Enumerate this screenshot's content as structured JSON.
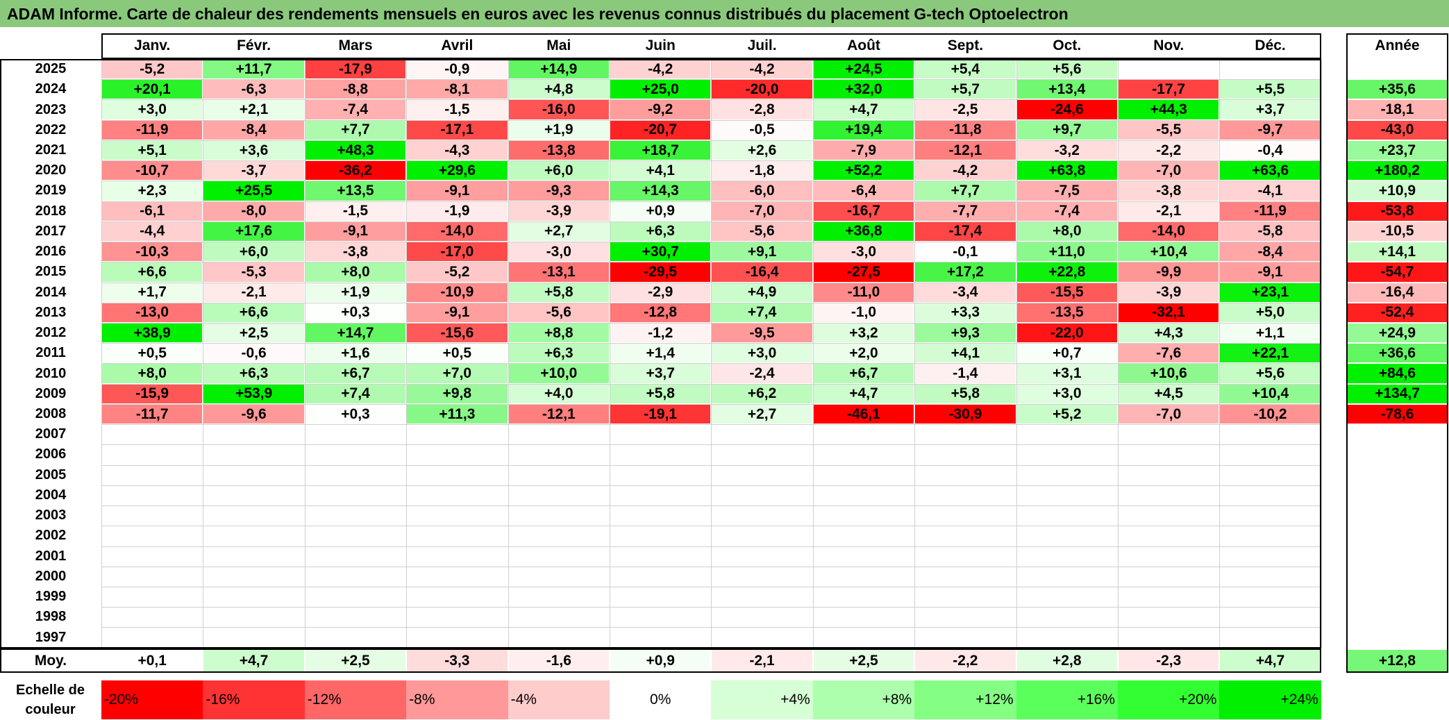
{
  "title": "ADAM Informe. Carte de chaleur des rendements mensuels en euros avec les revenus connus distribués du placement G-tech Optoelectron",
  "chart_data": {
    "type": "heatmap",
    "title": "ADAM Informe. Carte de chaleur des rendements mensuels en euros avec les revenus connus distribués du placement G-tech Optoelectron",
    "months": [
      "Janv.",
      "Févr.",
      "Mars",
      "Avril",
      "Mai",
      "Juin",
      "Juil.",
      "Août",
      "Sept.",
      "Oct.",
      "Nov.",
      "Déc."
    ],
    "annual_header": "Année",
    "rows": [
      {
        "year": "2025",
        "values": [
          "-5,2",
          "+11,7",
          "-17,9",
          "-0,9",
          "+14,9",
          "-4,2",
          "-4,2",
          "+24,5",
          "+5,4",
          "+5,6",
          "",
          ""
        ],
        "annual": ""
      },
      {
        "year": "2024",
        "values": [
          "+20,1",
          "-6,3",
          "-8,8",
          "-8,1",
          "+4,8",
          "+25,0",
          "-20,0",
          "+32,0",
          "+5,7",
          "+13,4",
          "-17,7",
          "+5,5"
        ],
        "annual": "+35,6"
      },
      {
        "year": "2023",
        "values": [
          "+3,0",
          "+2,1",
          "-7,4",
          "-1,5",
          "-16,0",
          "-9,2",
          "-2,8",
          "+4,7",
          "-2,5",
          "-24,6",
          "+44,3",
          "+3,7"
        ],
        "annual": "-18,1"
      },
      {
        "year": "2022",
        "values": [
          "-11,9",
          "-8,4",
          "+7,7",
          "-17,1",
          "+1,9",
          "-20,7",
          "-0,5",
          "+19,4",
          "-11,8",
          "+9,7",
          "-5,5",
          "-9,7"
        ],
        "annual": "-43,0"
      },
      {
        "year": "2021",
        "values": [
          "+5,1",
          "+3,6",
          "+48,3",
          "-4,3",
          "-13,8",
          "+18,7",
          "+2,6",
          "-7,9",
          "-12,1",
          "-3,2",
          "-2,2",
          "-0,4"
        ],
        "annual": "+23,7"
      },
      {
        "year": "2020",
        "values": [
          "-10,7",
          "-3,7",
          "-36,2",
          "+29,6",
          "+6,0",
          "+4,1",
          "-1,8",
          "+52,2",
          "-4,2",
          "+63,8",
          "-7,0",
          "+63,6"
        ],
        "annual": "+180,2"
      },
      {
        "year": "2019",
        "values": [
          "+2,3",
          "+25,5",
          "+13,5",
          "-9,1",
          "-9,3",
          "+14,3",
          "-6,0",
          "-6,4",
          "+7,7",
          "-7,5",
          "-3,8",
          "-4,1"
        ],
        "annual": "+10,9"
      },
      {
        "year": "2018",
        "values": [
          "-6,1",
          "-8,0",
          "-1,5",
          "-1,9",
          "-3,9",
          "+0,9",
          "-7,0",
          "-16,7",
          "-7,7",
          "-7,4",
          "-2,1",
          "-11,9"
        ],
        "annual": "-53,8"
      },
      {
        "year": "2017",
        "values": [
          "-4,4",
          "+17,6",
          "-9,1",
          "-14,0",
          "+2,7",
          "+6,3",
          "-5,6",
          "+36,8",
          "-17,4",
          "+8,0",
          "-14,0",
          "-5,8"
        ],
        "annual": "-10,5"
      },
      {
        "year": "2016",
        "values": [
          "-10,3",
          "+6,0",
          "-3,8",
          "-17,0",
          "-3,0",
          "+30,7",
          "+9,1",
          "-3,0",
          "-0,1",
          "+11,0",
          "+10,4",
          "-8,4"
        ],
        "annual": "+14,1"
      },
      {
        "year": "2015",
        "values": [
          "+6,6",
          "-5,3",
          "+8,0",
          "-5,2",
          "-13,1",
          "-29,5",
          "-16,4",
          "-27,5",
          "+17,2",
          "+22,8",
          "-9,9",
          "-9,1"
        ],
        "annual": "-54,7"
      },
      {
        "year": "2014",
        "values": [
          "+1,7",
          "-2,1",
          "+1,9",
          "-10,9",
          "+5,8",
          "-2,9",
          "+4,9",
          "-11,0",
          "-3,4",
          "-15,5",
          "-3,9",
          "+23,1"
        ],
        "annual": "-16,4"
      },
      {
        "year": "2013",
        "values": [
          "-13,0",
          "+6,6",
          "+0,3",
          "-9,1",
          "-5,6",
          "-12,8",
          "+7,4",
          "-1,0",
          "+3,3",
          "-13,5",
          "-32,1",
          "+5,0"
        ],
        "annual": "-52,4"
      },
      {
        "year": "2012",
        "values": [
          "+38,9",
          "+2,5",
          "+14,7",
          "-15,6",
          "+8,8",
          "-1,2",
          "-9,5",
          "+3,2",
          "+9,3",
          "-22,0",
          "+4,3",
          "+1,1"
        ],
        "annual": "+24,9"
      },
      {
        "year": "2011",
        "values": [
          "+0,5",
          "-0,6",
          "+1,6",
          "+0,5",
          "+6,3",
          "+1,4",
          "+3,0",
          "+2,0",
          "+4,1",
          "+0,7",
          "-7,6",
          "+22,1"
        ],
        "annual": "+36,6"
      },
      {
        "year": "2010",
        "values": [
          "+8,0",
          "+6,3",
          "+6,7",
          "+7,0",
          "+10,0",
          "+3,7",
          "-2,4",
          "+6,7",
          "-1,4",
          "+3,1",
          "+10,6",
          "+5,6"
        ],
        "annual": "+84,6"
      },
      {
        "year": "2009",
        "values": [
          "-15,9",
          "+53,9",
          "+7,4",
          "+9,8",
          "+4,0",
          "+5,8",
          "+6,2",
          "+4,7",
          "+5,8",
          "+3,0",
          "+4,5",
          "+10,4"
        ],
        "annual": "+134,7"
      },
      {
        "year": "2008",
        "values": [
          "-11,7",
          "-9,6",
          "+0,3",
          "+11,3",
          "-12,1",
          "-19,1",
          "+2,7",
          "-46,1",
          "-30,9",
          "+5,2",
          "-7,0",
          "-10,2"
        ],
        "annual": "-78,6"
      },
      {
        "year": "2007",
        "values": [
          "",
          "",
          "",
          "",
          "",
          "",
          "",
          "",
          "",
          "",
          "",
          ""
        ],
        "annual": ""
      },
      {
        "year": "2006",
        "values": [
          "",
          "",
          "",
          "",
          "",
          "",
          "",
          "",
          "",
          "",
          "",
          ""
        ],
        "annual": ""
      },
      {
        "year": "2005",
        "values": [
          "",
          "",
          "",
          "",
          "",
          "",
          "",
          "",
          "",
          "",
          "",
          ""
        ],
        "annual": ""
      },
      {
        "year": "2004",
        "values": [
          "",
          "",
          "",
          "",
          "",
          "",
          "",
          "",
          "",
          "",
          "",
          ""
        ],
        "annual": ""
      },
      {
        "year": "2003",
        "values": [
          "",
          "",
          "",
          "",
          "",
          "",
          "",
          "",
          "",
          "",
          "",
          ""
        ],
        "annual": ""
      },
      {
        "year": "2002",
        "values": [
          "",
          "",
          "",
          "",
          "",
          "",
          "",
          "",
          "",
          "",
          "",
          ""
        ],
        "annual": ""
      },
      {
        "year": "2001",
        "values": [
          "",
          "",
          "",
          "",
          "",
          "",
          "",
          "",
          "",
          "",
          "",
          ""
        ],
        "annual": ""
      },
      {
        "year": "2000",
        "values": [
          "",
          "",
          "",
          "",
          "",
          "",
          "",
          "",
          "",
          "",
          "",
          ""
        ],
        "annual": ""
      },
      {
        "year": "1999",
        "values": [
          "",
          "",
          "",
          "",
          "",
          "",
          "",
          "",
          "",
          "",
          "",
          ""
        ],
        "annual": ""
      },
      {
        "year": "1998",
        "values": [
          "",
          "",
          "",
          "",
          "",
          "",
          "",
          "",
          "",
          "",
          "",
          ""
        ],
        "annual": ""
      },
      {
        "year": "1997",
        "values": [
          "",
          "",
          "",
          "",
          "",
          "",
          "",
          "",
          "",
          "",
          "",
          ""
        ],
        "annual": ""
      }
    ],
    "average": {
      "label": "Moy.",
      "values": [
        "+0,1",
        "+4,7",
        "+2,5",
        "-3,3",
        "-1,6",
        "+0,9",
        "-2,1",
        "+2,5",
        "-2,2",
        "+2,8",
        "-2,3",
        "+4,7"
      ],
      "annual": "+12,8"
    },
    "scale": {
      "label_line1": "Echelle de",
      "label_line2": "couleur",
      "steps": [
        {
          "label": "-20%",
          "color": "#ff0000"
        },
        {
          "label": "-16%",
          "color": "#ff3333"
        },
        {
          "label": "-12%",
          "color": "#ff6666"
        },
        {
          "label": "-8%",
          "color": "#ff9999"
        },
        {
          "label": "-4%",
          "color": "#ffcccc"
        },
        {
          "label": "0%",
          "color": "#ffffff"
        },
        {
          "label": "+4%",
          "color": "#d6ffd6"
        },
        {
          "label": "+8%",
          "color": "#adffad"
        },
        {
          "label": "+12%",
          "color": "#84ff84"
        },
        {
          "label": "+16%",
          "color": "#5bff5b"
        },
        {
          "label": "+20%",
          "color": "#32ff32"
        },
        {
          "label": "+24%",
          "color": "#00f000"
        }
      ]
    }
  }
}
